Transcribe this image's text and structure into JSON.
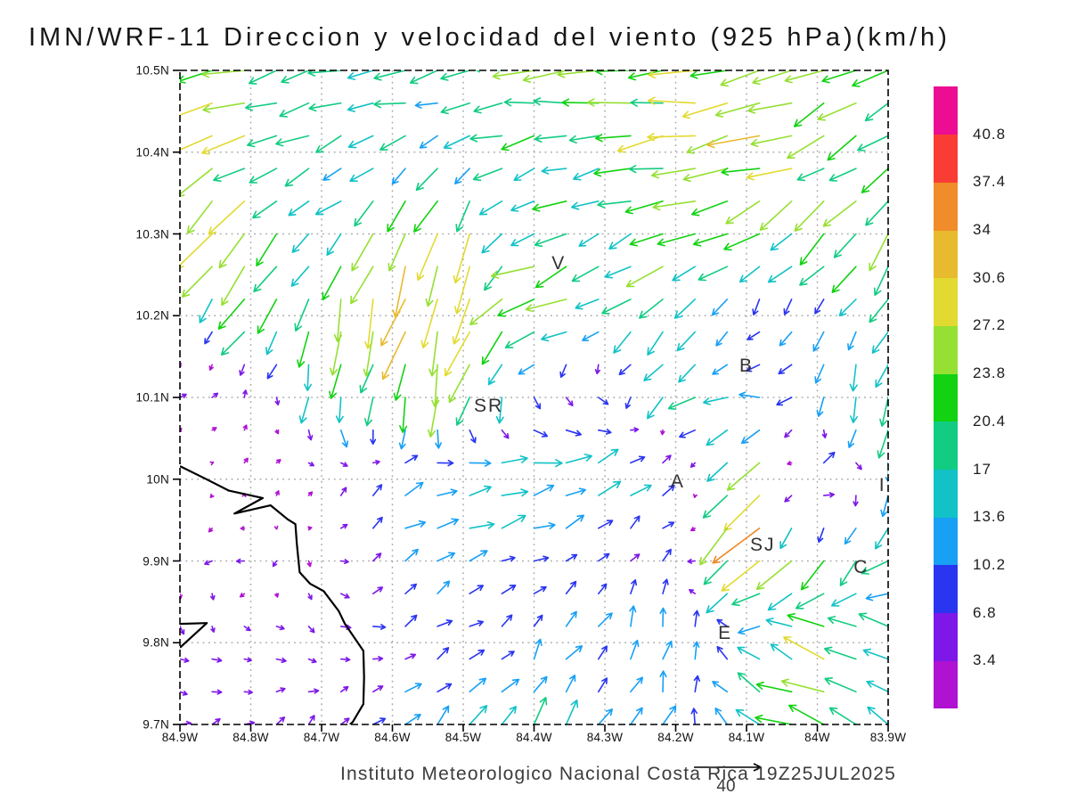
{
  "title": "IMN/WRF-11 Direccion y velocidad del viento (925 hPa)(km/h)",
  "footer": {
    "credit": "Instituto Meteorologico Nacional Costa Rica 19Z25JUL2025",
    "reference_vector_label": "40"
  },
  "chart_data": {
    "type": "vector-field",
    "variable": "wind direction and speed",
    "model": "IMN/WRF-11",
    "level": "925 hPa",
    "units": "km/h",
    "valid_time": "19Z25JUL2025",
    "x_axis": {
      "ticks": [
        "84.9W",
        "84.8W",
        "84.7W",
        "84.6W",
        "84.5W",
        "84.4W",
        "84.3W",
        "84.2W",
        "84.1W",
        "84W",
        "83.9W"
      ],
      "lon_min": -84.9,
      "lon_max": -83.9
    },
    "y_axis": {
      "ticks": [
        "10.5N",
        "10.4N",
        "10.3N",
        "10.2N",
        "10.1N",
        "10N",
        "9.9N",
        "9.8N",
        "9.7N"
      ],
      "lat_min": 9.7,
      "lat_max": 10.5
    },
    "grid": true,
    "colorbar": {
      "labels": [
        "3.4",
        "6.8",
        "10.2",
        "13.6",
        "17",
        "20.4",
        "23.8",
        "27.2",
        "30.6",
        "34",
        "37.4",
        "40.8"
      ],
      "levels": [
        3.4,
        6.8,
        10.2,
        13.6,
        17,
        20.4,
        23.8,
        27.2,
        30.6,
        34,
        37.4,
        40.8
      ],
      "colors_low_to_high": [
        "#b012d2",
        "#7d18e8",
        "#2a35f0",
        "#18a0f5",
        "#12c2c6",
        "#12cc82",
        "#12d212",
        "#95e032",
        "#e2da30",
        "#e8ba2e",
        "#f08c2a",
        "#f93d35",
        "#ec0d92"
      ]
    },
    "reference_vector": {
      "magnitude": 40
    },
    "vector_grid": {
      "cols": 23,
      "rows": 21
    },
    "coarse_wind_grid": {
      "lons": [
        -84.9,
        -84.8,
        -84.7,
        -84.6,
        -84.5,
        -84.4,
        -84.3,
        -84.2,
        -84.1,
        -84.0,
        -83.9
      ],
      "lats": [
        10.5,
        10.4,
        10.3,
        10.2,
        10.1,
        10.0,
        9.9,
        9.8,
        9.7
      ],
      "uv": [
        [
          [
            -24,
            -10
          ],
          [
            -22,
            -6
          ],
          [
            -18,
            -6
          ],
          [
            -16,
            -4
          ],
          [
            -17,
            -3
          ],
          [
            -20,
            -3
          ],
          [
            -22,
            -2
          ],
          [
            -24,
            -3
          ],
          [
            -22,
            -4
          ],
          [
            -20,
            -8
          ],
          [
            -18,
            -10
          ]
        ],
        [
          [
            -25,
            -12
          ],
          [
            -20,
            -10
          ],
          [
            -14,
            -8
          ],
          [
            -12,
            -6
          ],
          [
            -13,
            -5
          ],
          [
            -16,
            -4
          ],
          [
            -18,
            -3
          ],
          [
            -25,
            -5
          ],
          [
            -28,
            -6
          ],
          [
            -18,
            -10
          ],
          [
            -16,
            -12
          ]
        ],
        [
          [
            -20,
            -28
          ],
          [
            -18,
            -20
          ],
          [
            -12,
            -10
          ],
          [
            -8,
            -22
          ],
          [
            -10,
            -24
          ],
          [
            -14,
            -8
          ],
          [
            -16,
            -6
          ],
          [
            -20,
            -8
          ],
          [
            -16,
            -10
          ],
          [
            -14,
            -14
          ],
          [
            -12,
            -16
          ]
        ],
        [
          [
            -5,
            -4
          ],
          [
            -14,
            -18
          ],
          [
            -4,
            -20
          ],
          [
            -6,
            -26
          ],
          [
            -8,
            -26
          ],
          [
            -28,
            -8
          ],
          [
            -10,
            -8
          ],
          [
            -14,
            -16
          ],
          [
            -4,
            -6
          ],
          [
            -3,
            -10
          ],
          [
            -8,
            -14
          ]
        ],
        [
          [
            3,
            4
          ],
          [
            2,
            3
          ],
          [
            -2,
            -18
          ],
          [
            -4,
            -20
          ],
          [
            -5,
            -18
          ],
          [
            2,
            -8
          ],
          [
            5,
            -3
          ],
          [
            -12,
            -10
          ],
          [
            -15,
            3
          ],
          [
            -2,
            -12
          ],
          [
            -5,
            -15
          ]
        ],
        [
          [
            -3,
            -2
          ],
          [
            3,
            2
          ],
          [
            4,
            3
          ],
          [
            8,
            6
          ],
          [
            16,
            7
          ],
          [
            17,
            6
          ],
          [
            12,
            8
          ],
          [
            10,
            6
          ],
          [
            -24,
            -20
          ],
          [
            12,
            10
          ],
          [
            -2,
            -14
          ]
        ],
        [
          [
            -4,
            -3
          ],
          [
            -5,
            -2
          ],
          [
            2,
            -3
          ],
          [
            8,
            5
          ],
          [
            10,
            4
          ],
          [
            8,
            3
          ],
          [
            6,
            4
          ],
          [
            4,
            6
          ],
          [
            -26,
            -24
          ],
          [
            -10,
            -18
          ],
          [
            -14,
            -10
          ]
        ],
        [
          [
            4,
            -4
          ],
          [
            5,
            -3
          ],
          [
            5,
            -2
          ],
          [
            7,
            3
          ],
          [
            8,
            6
          ],
          [
            6,
            8
          ],
          [
            5,
            10
          ],
          [
            2,
            14
          ],
          [
            -8,
            4
          ],
          [
            -22,
            8
          ],
          [
            -18,
            6
          ]
        ],
        [
          [
            5,
            2
          ],
          [
            5,
            3
          ],
          [
            4,
            4
          ],
          [
            6,
            6
          ],
          [
            10,
            8
          ],
          [
            8,
            12
          ],
          [
            6,
            10
          ],
          [
            4,
            12
          ],
          [
            -12,
            8
          ],
          [
            -20,
            7
          ],
          [
            -14,
            8
          ]
        ]
      ]
    },
    "stations": [
      {
        "label": "V",
        "lon": -84.365,
        "lat": 10.264
      },
      {
        "label": "B",
        "lon": -84.1,
        "lat": 10.138
      },
      {
        "label": "SR",
        "lon": -84.464,
        "lat": 10.089
      },
      {
        "label": "A",
        "lon": -84.197,
        "lat": 9.996
      },
      {
        "label": "I",
        "lon": -83.908,
        "lat": 9.992
      },
      {
        "label": "SJ",
        "lon": -84.077,
        "lat": 9.919
      },
      {
        "label": "C",
        "lon": -83.938,
        "lat": 9.892
      },
      {
        "label": "E",
        "lon": -84.13,
        "lat": 9.811
      }
    ],
    "coastline": [
      [
        -84.9,
        10.016
      ],
      [
        -84.865,
        10.001
      ],
      [
        -84.831,
        9.986
      ],
      [
        -84.783,
        9.977
      ],
      [
        -84.823,
        9.958
      ],
      [
        -84.772,
        9.968
      ],
      [
        -84.748,
        9.951
      ],
      [
        -84.737,
        9.945
      ],
      [
        -84.735,
        9.921
      ],
      [
        -84.731,
        9.886
      ],
      [
        -84.716,
        9.872
      ],
      [
        -84.697,
        9.863
      ],
      [
        -84.676,
        9.839
      ],
      [
        -84.667,
        9.823
      ],
      [
        -84.641,
        9.79
      ],
      [
        -84.64,
        9.758
      ],
      [
        -84.641,
        9.725
      ],
      [
        -84.656,
        9.703
      ],
      [
        -84.66,
        9.7
      ]
    ],
    "coast_spur": [
      [
        -84.9,
        9.823
      ],
      [
        -84.862,
        9.824
      ],
      [
        -84.9,
        9.794
      ]
    ]
  }
}
